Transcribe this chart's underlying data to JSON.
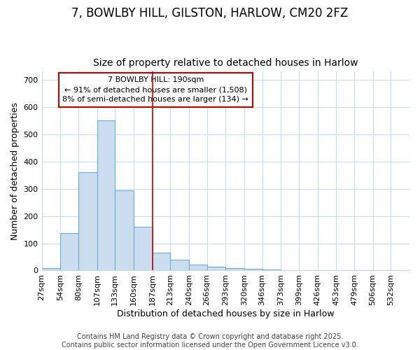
{
  "title1": "7, BOWLBY HILL, GILSTON, HARLOW, CM20 2FZ",
  "title2": "Size of property relative to detached houses in Harlow",
  "xlabel": "Distribution of detached houses by size in Harlow",
  "ylabel": "Number of detached properties",
  "bin_edges": [
    27,
    54,
    80,
    107,
    133,
    160,
    187,
    213,
    240,
    266,
    293,
    320,
    346,
    373,
    399,
    426,
    453,
    479,
    506,
    532,
    559
  ],
  "bar_heights": [
    10,
    137,
    360,
    550,
    293,
    160,
    65,
    40,
    22,
    15,
    10,
    7,
    4,
    0,
    0,
    0,
    0,
    0,
    0,
    0
  ],
  "bar_color": "#ccddf0",
  "bar_edge_color": "#6aaed6",
  "vline_x": 187,
  "vline_color": "#cc0000",
  "annotation_line1": "7 BOWLBY HILL: 190sqm",
  "annotation_line2": "← 91% of detached houses are smaller (1,508)",
  "annotation_line3": "8% of semi-detached houses are larger (134) →",
  "annotation_box_color": "#ffffff",
  "annotation_box_edge": "#cc0000",
  "ylim": [
    0,
    730
  ],
  "yticks": [
    0,
    100,
    200,
    300,
    400,
    500,
    600,
    700
  ],
  "footer1": "Contains HM Land Registry data © Crown copyright and database right 2025.",
  "footer2": "Contains public sector information licensed under the Open Government Licence v3.0.",
  "bg_color": "#ffffff",
  "grid_color": "#c8ddf0",
  "title1_fontsize": 12,
  "title2_fontsize": 10,
  "ylabel_fontsize": 9,
  "xlabel_fontsize": 9,
  "tick_fontsize": 8,
  "footer_fontsize": 7
}
